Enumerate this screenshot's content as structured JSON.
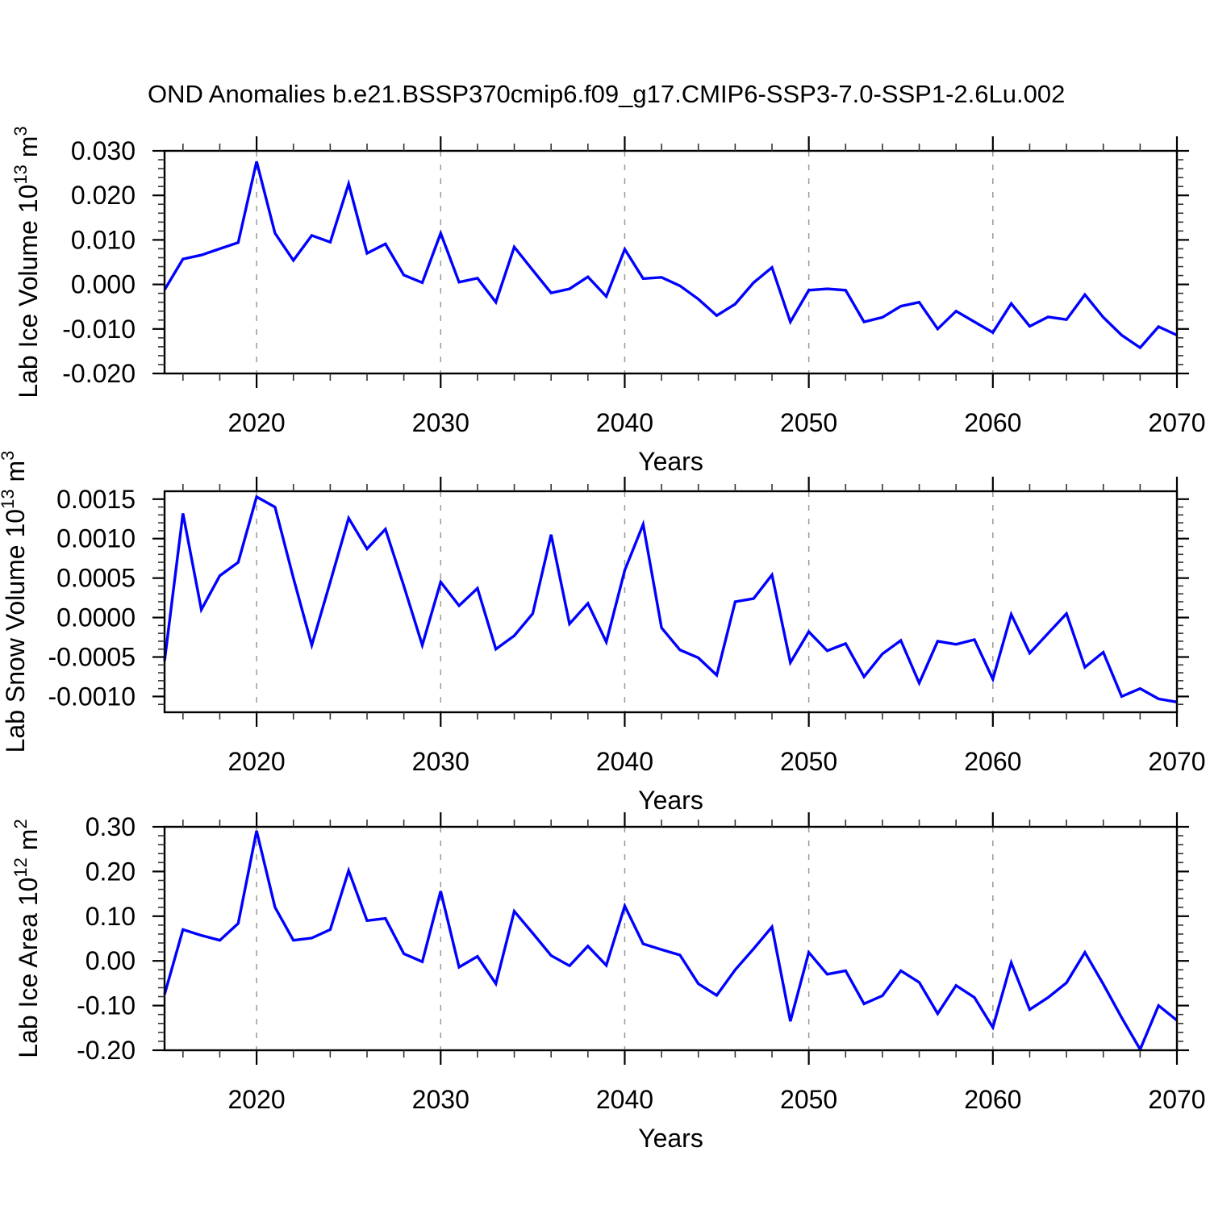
{
  "title": "OND Anomalies b.e21.BSSP370cmip6.f09_g17.CMIP6-SSP3-7.0-SSP1-2.6Lu.002",
  "colors": {
    "line": "#0000ff",
    "grid": "#999999",
    "axis": "#000000",
    "minor_tick": "#333333",
    "background": "#ffffff"
  },
  "chart_data": [
    {
      "type": "line",
      "name": "lab-ice-volume",
      "ylabel": "Lab Ice Volume 10^13 m^3",
      "ylabel_segments": [
        [
          "Lab Ice Volume 10",
          false
        ],
        [
          "13",
          true
        ],
        [
          " m",
          false
        ],
        [
          "3",
          true
        ]
      ],
      "xlabel": "Years",
      "xlim": [
        2015,
        2070
      ],
      "ylim": [
        -0.02,
        0.03
      ],
      "grid_x": [
        2020,
        2030,
        2040,
        2050,
        2060
      ],
      "xticks": [
        {
          "v": 2020,
          "label": "2020"
        },
        {
          "v": 2030,
          "label": "2030"
        },
        {
          "v": 2040,
          "label": "2040"
        },
        {
          "v": 2050,
          "label": "2050"
        },
        {
          "v": 2060,
          "label": "2060"
        },
        {
          "v": 2070,
          "label": "2070"
        }
      ],
      "xtick_minor_step": 2,
      "yticks": [
        {
          "v": -0.02,
          "label": "-0.020"
        },
        {
          "v": -0.01,
          "label": "-0.010"
        },
        {
          "v": 0.0,
          "label": "0.000"
        },
        {
          "v": 0.01,
          "label": "0.010"
        },
        {
          "v": 0.02,
          "label": "0.020"
        },
        {
          "v": 0.03,
          "label": "0.030"
        }
      ],
      "ytick_minor_step": 0.002,
      "years": [
        2015,
        2016,
        2017,
        2018,
        2019,
        2020,
        2021,
        2022,
        2023,
        2024,
        2025,
        2026,
        2027,
        2028,
        2029,
        2030,
        2031,
        2032,
        2033,
        2034,
        2035,
        2036,
        2037,
        2038,
        2039,
        2040,
        2041,
        2042,
        2043,
        2044,
        2045,
        2046,
        2047,
        2048,
        2049,
        2050,
        2051,
        2052,
        2053,
        2054,
        2055,
        2056,
        2057,
        2058,
        2059,
        2060,
        2061,
        2062,
        2063,
        2064,
        2065,
        2066,
        2067,
        2068,
        2069,
        2070
      ],
      "values": [
        -0.0012,
        0.0057,
        0.0066,
        0.008,
        0.0094,
        0.0276,
        0.0115,
        0.0054,
        0.011,
        0.0095,
        0.0226,
        0.007,
        0.0091,
        0.0021,
        0.0004,
        0.0115,
        0.0005,
        0.0014,
        -0.004,
        0.0084,
        0.0032,
        -0.0019,
        -0.001,
        0.0017,
        -0.0027,
        0.0079,
        0.0013,
        0.0016,
        -0.0003,
        -0.0033,
        -0.007,
        -0.0044,
        0.0004,
        0.0038,
        -0.0084,
        -0.0013,
        -0.001,
        -0.0013,
        -0.0084,
        -0.0074,
        -0.0049,
        -0.004,
        -0.01,
        -0.006,
        -0.0084,
        -0.0108,
        -0.0043,
        -0.0094,
        -0.0073,
        -0.0079,
        -0.0023,
        -0.0074,
        -0.0114,
        -0.0142,
        -0.0095,
        -0.0114
      ]
    },
    {
      "type": "line",
      "name": "lab-snow-volume",
      "ylabel": "Lab Snow Volume 10^13 m^3",
      "ylabel_segments": [
        [
          "Lab Snow Volume 10",
          false
        ],
        [
          "13",
          true
        ],
        [
          " m",
          false
        ],
        [
          "3",
          true
        ]
      ],
      "xlabel": "Years",
      "xlim": [
        2015,
        2070
      ],
      "ylim": [
        -0.0012,
        0.0016
      ],
      "grid_x": [
        2020,
        2030,
        2040,
        2050,
        2060
      ],
      "xticks": [
        {
          "v": 2020,
          "label": "2020"
        },
        {
          "v": 2030,
          "label": "2030"
        },
        {
          "v": 2040,
          "label": "2040"
        },
        {
          "v": 2050,
          "label": "2050"
        },
        {
          "v": 2060,
          "label": "2060"
        },
        {
          "v": 2070,
          "label": "2070"
        }
      ],
      "xtick_minor_step": 2,
      "yticks": [
        {
          "v": -0.001,
          "label": "-0.0010"
        },
        {
          "v": -0.0005,
          "label": "-0.0005"
        },
        {
          "v": 0.0,
          "label": "0.0000"
        },
        {
          "v": 0.0005,
          "label": "0.0005"
        },
        {
          "v": 0.001,
          "label": "0.0010"
        },
        {
          "v": 0.0015,
          "label": "0.0015"
        }
      ],
      "ytick_minor_step": 0.0001,
      "years": [
        2015,
        2016,
        2017,
        2018,
        2019,
        2020,
        2021,
        2022,
        2023,
        2024,
        2025,
        2026,
        2027,
        2028,
        2029,
        2030,
        2031,
        2032,
        2033,
        2034,
        2035,
        2036,
        2037,
        2038,
        2039,
        2040,
        2041,
        2042,
        2043,
        2044,
        2045,
        2046,
        2047,
        2048,
        2049,
        2050,
        2051,
        2052,
        2053,
        2054,
        2055,
        2056,
        2057,
        2058,
        2059,
        2060,
        2061,
        2062,
        2063,
        2064,
        2065,
        2066,
        2067,
        2068,
        2069,
        2070
      ],
      "values": [
        -0.00055,
        0.00132,
        0.0001,
        0.00053,
        0.0007,
        0.00153,
        0.0014,
        0.0005,
        -0.00035,
        0.00045,
        0.00126,
        0.00087,
        0.00112,
        0.0004,
        -0.00035,
        0.00045,
        0.00015,
        0.00037,
        -0.0004,
        -0.00023,
        5e-05,
        0.00105,
        -8e-05,
        0.00018,
        -0.00031,
        0.0006,
        0.00118,
        -0.00013,
        -0.00041,
        -0.00051,
        -0.00073,
        0.0002,
        0.00024,
        0.00054,
        -0.00057,
        -0.00018,
        -0.00042,
        -0.00033,
        -0.00075,
        -0.00046,
        -0.00029,
        -0.00083,
        -0.0003,
        -0.00034,
        -0.00028,
        -0.00078,
        4e-05,
        -0.00045,
        -0.0002,
        5e-05,
        -0.00063,
        -0.00044,
        -0.001,
        -0.0009,
        -0.00103,
        -0.00107
      ]
    },
    {
      "type": "line",
      "name": "lab-ice-area",
      "ylabel": "Lab Ice Area 10^12 m^2",
      "ylabel_segments": [
        [
          "Lab Ice Area 10",
          false
        ],
        [
          "12",
          true
        ],
        [
          " m",
          false
        ],
        [
          "2",
          true
        ]
      ],
      "xlabel": "Years",
      "xlim": [
        2015,
        2070
      ],
      "ylim": [
        -0.2,
        0.3
      ],
      "grid_x": [
        2020,
        2030,
        2040,
        2050,
        2060
      ],
      "xticks": [
        {
          "v": 2020,
          "label": "2020"
        },
        {
          "v": 2030,
          "label": "2030"
        },
        {
          "v": 2040,
          "label": "2040"
        },
        {
          "v": 2050,
          "label": "2050"
        },
        {
          "v": 2060,
          "label": "2060"
        },
        {
          "v": 2070,
          "label": "2070"
        }
      ],
      "xtick_minor_step": 2,
      "yticks": [
        {
          "v": -0.2,
          "label": "-0.20"
        },
        {
          "v": -0.1,
          "label": "-0.10"
        },
        {
          "v": 0.0,
          "label": "0.00"
        },
        {
          "v": 0.1,
          "label": "0.10"
        },
        {
          "v": 0.2,
          "label": "0.20"
        },
        {
          "v": 0.3,
          "label": "0.30"
        }
      ],
      "ytick_minor_step": 0.02,
      "years": [
        2015,
        2016,
        2017,
        2018,
        2019,
        2020,
        2021,
        2022,
        2023,
        2024,
        2025,
        2026,
        2027,
        2028,
        2029,
        2030,
        2031,
        2032,
        2033,
        2034,
        2035,
        2036,
        2037,
        2038,
        2039,
        2040,
        2041,
        2042,
        2043,
        2044,
        2045,
        2046,
        2047,
        2048,
        2049,
        2050,
        2051,
        2052,
        2053,
        2054,
        2055,
        2056,
        2057,
        2058,
        2059,
        2060,
        2061,
        2062,
        2063,
        2064,
        2065,
        2066,
        2067,
        2068,
        2069,
        2070
      ],
      "values": [
        -0.075,
        0.07,
        0.057,
        0.046,
        0.084,
        0.291,
        0.12,
        0.046,
        0.051,
        0.07,
        0.202,
        0.09,
        0.095,
        0.016,
        -0.002,
        0.156,
        -0.014,
        0.01,
        -0.051,
        0.111,
        0.062,
        0.012,
        -0.011,
        0.033,
        -0.01,
        0.123,
        0.038,
        0.025,
        0.013,
        -0.051,
        -0.077,
        -0.02,
        0.027,
        0.076,
        -0.135,
        0.019,
        -0.03,
        -0.022,
        -0.096,
        -0.078,
        -0.022,
        -0.048,
        -0.118,
        -0.055,
        -0.082,
        -0.149,
        -0.004,
        -0.109,
        -0.082,
        -0.049,
        0.019,
        -0.052,
        -0.127,
        -0.198,
        -0.1,
        -0.133
      ]
    }
  ]
}
